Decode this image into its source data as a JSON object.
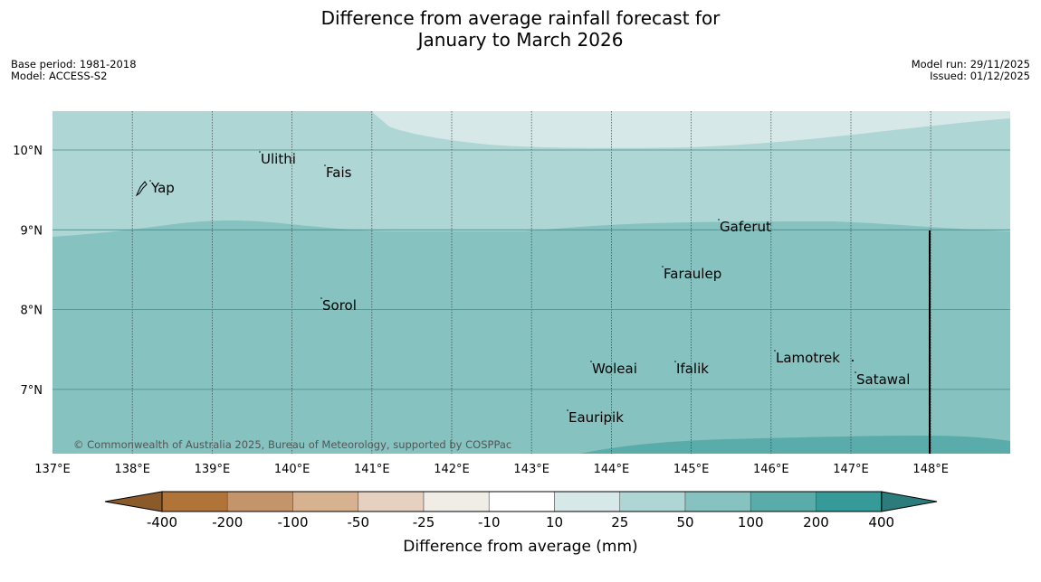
{
  "title": {
    "line1": "Difference from average rainfall forecast for",
    "line2": "January to March 2026"
  },
  "meta": {
    "base_period": "Base period: 1981-2018",
    "model": "Model: ACCESS-S2",
    "model_run": "Model run: 29/11/2025",
    "issued": "Issued: 01/12/2025"
  },
  "map": {
    "lon_labels": [
      "137°E",
      "138°E",
      "139°E",
      "140°E",
      "141°E",
      "142°E",
      "143°E",
      "144°E",
      "145°E",
      "146°E",
      "147°E",
      "148°E"
    ],
    "lat_labels": [
      "10°N",
      "9°N",
      "8°N",
      "7°N"
    ],
    "places": [
      "Ulithi",
      "Fais",
      "Yap",
      "Gaferut",
      "Faraulep",
      "Sorol",
      "Woleai",
      "Ifalik",
      "Lamotrek",
      "Satawal",
      "Eauripik"
    ],
    "copyright": "© Commonwealth of Australia 2025, Bureau of Meteorology, supported by COSPPac",
    "colors": {
      "band_25_50": "#aed6d5",
      "band_10_25": "#d6e9e8",
      "band_50_100": "#85c2c0",
      "band_100_200": "#5aacaa"
    }
  },
  "legend": {
    "title": "Difference from average (mm)",
    "ticks": [
      "-400",
      "-200",
      "-100",
      "-50",
      "-25",
      "-10",
      "10",
      "25",
      "50",
      "100",
      "200",
      "400"
    ],
    "colors": [
      "#8a5a2b",
      "#b07338",
      "#c4946a",
      "#d6b291",
      "#e6d1c0",
      "#f0ece6",
      "#ffffff",
      "#d6e9e8",
      "#aed6d5",
      "#85c2c0",
      "#5aacaa",
      "#359a98",
      "#2b7c7a"
    ]
  }
}
